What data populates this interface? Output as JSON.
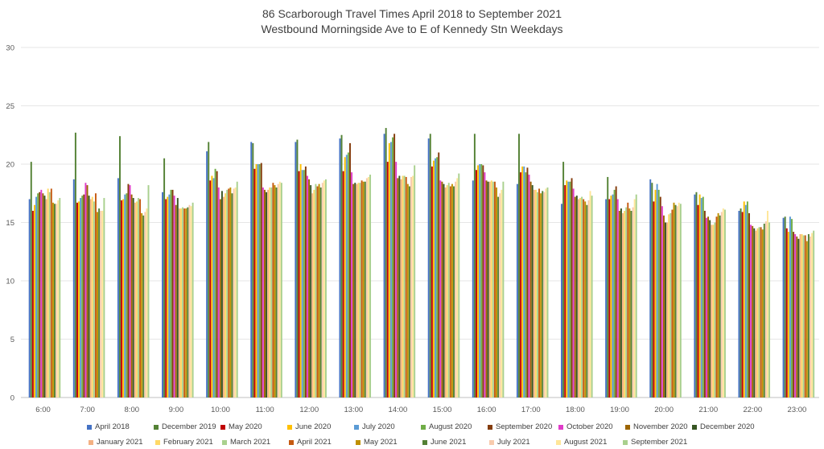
{
  "chart_data": {
    "type": "bar",
    "title": "86 Scarborough Travel Times April 2018 to September 2021",
    "subtitle": "Westbound Morningside Ave to E of Kennedy Stn Weekdays",
    "xlabel": "",
    "ylabel": "",
    "ylim": [
      0,
      30
    ],
    "yticks": [
      0,
      5,
      10,
      15,
      20,
      25,
      30
    ],
    "grid": true,
    "legend_position": "bottom",
    "categories": [
      "6:00",
      "7:00",
      "8:00",
      "9:00",
      "10:00",
      "11:00",
      "12:00",
      "13:00",
      "14:00",
      "15:00",
      "16:00",
      "17:00",
      "18:00",
      "19:00",
      "20:00",
      "21:00",
      "22:00",
      "23:00"
    ],
    "series": [
      {
        "name": "April 2018",
        "color": "#4472C4",
        "values": [
          17.0,
          18.7,
          18.8,
          17.6,
          21.1,
          21.9,
          21.9,
          22.2,
          22.6,
          22.2,
          18.6,
          18.3,
          16.6,
          17.0,
          18.7,
          17.4,
          16.0,
          15.4
        ]
      },
      {
        "name": "December 2019",
        "color": "#548235",
        "values": [
          20.2,
          22.7,
          22.4,
          20.5,
          21.9,
          21.8,
          22.1,
          22.5,
          23.1,
          22.6,
          22.6,
          22.6,
          20.2,
          18.9,
          18.4,
          17.6,
          16.2,
          15.5
        ]
      },
      {
        "name": "May 2020",
        "color": "#C00000",
        "values": [
          16.0,
          16.7,
          16.9,
          17.0,
          18.6,
          19.6,
          19.4,
          19.4,
          20.2,
          19.8,
          19.5,
          19.3,
          18.2,
          17.0,
          16.8,
          16.5,
          15.9,
          14.5
        ]
      },
      {
        "name": "June 2020",
        "color": "#FFC000",
        "values": [
          16.5,
          16.8,
          17.0,
          17.2,
          19.0,
          20.0,
          20.0,
          20.6,
          21.8,
          20.3,
          19.9,
          19.8,
          18.6,
          17.3,
          17.8,
          17.4,
          16.8,
          14.2
        ]
      },
      {
        "name": "July 2020",
        "color": "#5B9BD5",
        "values": [
          17.2,
          17.1,
          17.4,
          17.4,
          18.8,
          20.0,
          19.5,
          20.8,
          21.9,
          20.5,
          20.0,
          19.8,
          18.5,
          17.4,
          18.3,
          17.1,
          16.5,
          15.5
        ]
      },
      {
        "name": "August 2020",
        "color": "#70AD47",
        "values": [
          17.5,
          17.3,
          17.5,
          17.8,
          19.6,
          20.0,
          19.5,
          21.0,
          22.3,
          20.6,
          20.0,
          19.3,
          18.5,
          17.8,
          17.8,
          17.2,
          16.8,
          15.3
        ]
      },
      {
        "name": "September 2020",
        "color": "#843C0C",
        "values": [
          17.6,
          17.4,
          18.3,
          17.8,
          19.4,
          20.1,
          19.8,
          21.8,
          22.6,
          21.0,
          19.9,
          19.7,
          18.8,
          18.1,
          17.2,
          16.0,
          15.8,
          14.2
        ]
      },
      {
        "name": "October 2020",
        "color": "#E03CC9",
        "values": [
          17.8,
          18.4,
          18.2,
          17.3,
          18.0,
          18.0,
          19.0,
          19.3,
          20.2,
          18.6,
          19.3,
          19.1,
          17.9,
          17.0,
          16.4,
          15.4,
          14.8,
          14.0
        ]
      },
      {
        "name": "November 2020",
        "color": "#9C6500",
        "values": [
          17.5,
          18.2,
          17.4,
          16.5,
          17.0,
          17.8,
          18.7,
          18.3,
          18.8,
          18.5,
          18.6,
          18.5,
          17.2,
          16.0,
          15.6,
          15.5,
          14.7,
          13.8
        ]
      },
      {
        "name": "December 2020",
        "color": "#375623",
        "values": [
          17.3,
          17.3,
          17.1,
          17.1,
          17.7,
          17.6,
          18.2,
          18.4,
          19.0,
          18.3,
          18.5,
          18.2,
          17.3,
          16.2,
          15.0,
          15.2,
          14.5,
          13.6
        ]
      },
      {
        "name": "January 2021",
        "color": "#F4B183",
        "values": [
          17.0,
          17.0,
          16.7,
          16.2,
          17.2,
          17.8,
          17.5,
          18.3,
          18.7,
          18.0,
          18.5,
          17.8,
          17.0,
          15.8,
          15.0,
          14.8,
          14.3,
          14.0
        ]
      },
      {
        "name": "February 2021",
        "color": "#FFD966",
        "values": [
          17.9,
          17.2,
          16.8,
          16.2,
          17.5,
          18.0,
          17.8,
          18.4,
          19.0,
          18.2,
          18.6,
          17.8,
          17.1,
          16.0,
          15.7,
          14.8,
          14.5,
          14.0
        ]
      },
      {
        "name": "March 2021",
        "color": "#A9D18E",
        "values": [
          17.6,
          16.8,
          17.1,
          16.3,
          17.8,
          18.0,
          18.3,
          18.4,
          19.0,
          18.4,
          18.5,
          17.6,
          17.2,
          16.3,
          15.8,
          15.0,
          14.6,
          13.9
        ]
      },
      {
        "name": "April 2021",
        "color": "#C55A11",
        "values": [
          17.9,
          17.5,
          17.0,
          16.2,
          17.9,
          18.4,
          18.1,
          18.6,
          18.9,
          18.1,
          18.5,
          17.9,
          17.0,
          16.7,
          16.1,
          15.5,
          14.6,
          13.9
        ]
      },
      {
        "name": "May 2021",
        "color": "#BF9000",
        "values": [
          16.7,
          15.9,
          15.8,
          16.2,
          18.0,
          18.2,
          18.3,
          18.5,
          18.3,
          18.3,
          18.0,
          17.5,
          16.8,
          16.2,
          16.7,
          15.8,
          14.4,
          13.4
        ]
      },
      {
        "name": "June 2021",
        "color": "#538135",
        "values": [
          16.6,
          16.2,
          15.6,
          16.3,
          17.5,
          18.0,
          18.0,
          18.5,
          18.1,
          18.1,
          17.2,
          17.7,
          16.5,
          16.0,
          16.5,
          15.6,
          14.9,
          14.0
        ]
      },
      {
        "name": "July 2021",
        "color": "#F8CBAD",
        "values": [
          16.6,
          16.0,
          15.9,
          16.5,
          17.9,
          18.3,
          18.4,
          18.8,
          18.9,
          18.5,
          17.5,
          17.6,
          16.9,
          16.3,
          16.4,
          15.9,
          15.1,
          13.8
        ]
      },
      {
        "name": "August 2021",
        "color": "#FFE699",
        "values": [
          16.9,
          16.0,
          16.2,
          16.4,
          18.0,
          18.5,
          18.6,
          18.9,
          19.0,
          18.8,
          17.8,
          17.9,
          17.7,
          17.0,
          16.7,
          16.2,
          16.0,
          14.1
        ]
      },
      {
        "name": "September 2021",
        "color": "#A9D08E",
        "values": [
          17.1,
          17.1,
          18.2,
          16.7,
          18.5,
          18.4,
          18.7,
          19.1,
          19.9,
          19.2,
          18.5,
          18.0,
          17.3,
          17.4,
          16.6,
          16.1,
          15.0,
          14.3
        ]
      }
    ]
  }
}
